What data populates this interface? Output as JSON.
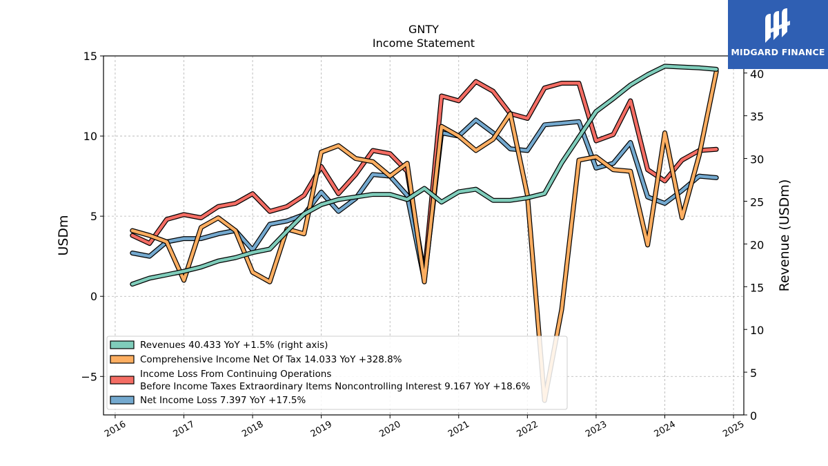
{
  "chart_data": {
    "type": "line",
    "title": "GNTY",
    "subtitle": "Income Statement",
    "ylabel": "USDm",
    "ylabel_right": "Revenue (USDm)",
    "ylim": [
      -7.4,
      15
    ],
    "ylim_right": [
      0,
      42
    ],
    "yticks": [
      -5,
      0,
      5,
      10,
      15
    ],
    "yticks_right": [
      0,
      5,
      10,
      15,
      20,
      25,
      30,
      35,
      40
    ],
    "xlim": [
      2015.83,
      2025.15
    ],
    "xticks": [
      "2016",
      "2017",
      "2018",
      "2019",
      "2020",
      "2021",
      "2022",
      "2023",
      "2024",
      "2025"
    ],
    "grid": true,
    "legend_position": "lower-left",
    "x": [
      2016.25,
      2016.5,
      2016.75,
      2017.0,
      2017.25,
      2017.5,
      2017.75,
      2018.0,
      2018.25,
      2018.5,
      2018.75,
      2019.0,
      2019.25,
      2019.5,
      2019.75,
      2020.0,
      2020.25,
      2020.5,
      2020.75,
      2021.0,
      2021.25,
      2021.5,
      2021.75,
      2022.0,
      2022.25,
      2022.5,
      2022.75,
      2023.0,
      2023.25,
      2023.5,
      2023.75,
      2024.0,
      2024.25,
      2024.5,
      2024.75
    ],
    "series": [
      {
        "legend": "Revenues  40.433 YoY +1.5% (right axis)",
        "axis": "right",
        "color": "#7fcdbb",
        "values": [
          15.3,
          16.0,
          16.4,
          16.8,
          17.3,
          18.0,
          18.4,
          19.0,
          19.4,
          21.5,
          23.5,
          24.6,
          25.2,
          25.5,
          25.8,
          25.8,
          25.2,
          26.5,
          24.9,
          26.1,
          26.4,
          25.1,
          25.1,
          25.4,
          25.9,
          29.5,
          32.5,
          35.5,
          37.0,
          38.6,
          39.8,
          40.8,
          40.7,
          40.6,
          40.43
        ]
      },
      {
        "legend": "Comprehensive Income Net Of Tax  14.033 YoY +328.8%",
        "axis": "left",
        "color": "#fdae61",
        "values": [
          4.1,
          3.8,
          3.4,
          1.0,
          4.3,
          4.9,
          4.1,
          1.5,
          0.9,
          4.2,
          3.9,
          9.0,
          9.4,
          8.6,
          8.4,
          7.5,
          8.3,
          0.9,
          10.6,
          10.0,
          9.1,
          9.8,
          11.4,
          6.3,
          -6.5,
          -0.8,
          8.5,
          8.7,
          7.9,
          7.8,
          3.2,
          10.2,
          4.9,
          8.8,
          14.03
        ]
      },
      {
        "legend_lines": [
          "Income Loss From Continuing Operations",
          "Before Income Taxes Extraordinary Items Noncontrolling Interest  9.167 YoY +18.6%"
        ],
        "axis": "left",
        "color": "#f46d64",
        "values": [
          3.8,
          3.3,
          4.8,
          5.1,
          4.9,
          5.6,
          5.8,
          6.4,
          5.3,
          5.6,
          6.3,
          8.1,
          6.4,
          7.6,
          9.1,
          8.9,
          7.8,
          1.3,
          12.5,
          12.2,
          13.4,
          12.8,
          11.4,
          11.1,
          13.0,
          13.3,
          13.3,
          9.7,
          10.1,
          12.2,
          7.9,
          7.2,
          8.5,
          9.1,
          9.17
        ]
      },
      {
        "legend": "Net Income Loss  7.397 YoY +17.5%",
        "axis": "left",
        "color": "#74a9cf",
        "values": [
          2.7,
          2.5,
          3.4,
          3.6,
          3.6,
          3.9,
          4.1,
          2.9,
          4.5,
          4.7,
          5.1,
          6.5,
          5.3,
          6.1,
          7.6,
          7.5,
          6.3,
          1.0,
          10.2,
          10.0,
          11.0,
          10.2,
          9.2,
          9.1,
          10.7,
          10.8,
          10.9,
          8.0,
          8.3,
          9.6,
          6.2,
          5.8,
          6.6,
          7.5,
          7.4
        ]
      }
    ]
  },
  "logo": {
    "name": "MIDGARD FINANCE"
  }
}
